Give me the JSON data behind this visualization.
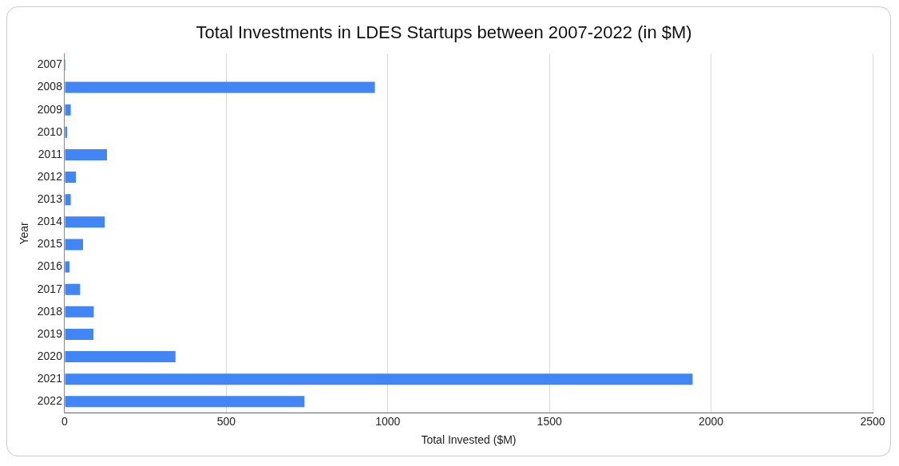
{
  "chart_data": {
    "type": "bar",
    "orientation": "horizontal",
    "title": "Total Investments in LDES Startups between 2007-2022 (in $M)",
    "xlabel": "Total Invested ($M)",
    "ylabel": "Year",
    "categories": [
      "2007",
      "2008",
      "2009",
      "2010",
      "2011",
      "2012",
      "2013",
      "2014",
      "2015",
      "2016",
      "2017",
      "2018",
      "2019",
      "2020",
      "2021",
      "2022"
    ],
    "values": [
      3,
      960,
      19,
      8,
      131,
      35,
      19,
      124,
      57,
      15,
      48,
      90,
      89,
      343,
      1943,
      742
    ],
    "color": "#4285f4",
    "xlim": [
      0,
      2500
    ],
    "xticks": [
      0,
      500,
      1000,
      1500,
      2000,
      2500
    ],
    "grid": "x",
    "legend": false
  }
}
